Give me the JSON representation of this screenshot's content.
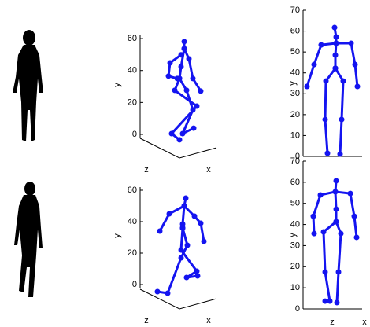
{
  "chart_data": [
    {
      "type": "skeleton",
      "ylabel": "y",
      "zlabel": "z",
      "xlabel": "x",
      "ylim": [
        0,
        62
      ],
      "yticks": [
        0,
        20,
        40,
        60
      ],
      "xlim": [
        0,
        100
      ],
      "color": "#1414f0",
      "series": [
        {
          "x": [
            56,
            56,
            52,
            50
          ],
          "values": [
            58.1,
            53.7,
            42.4,
            35.0
          ]
        },
        {
          "x": [
            52,
            38,
            36,
            47
          ],
          "values": [
            49.8,
            44.8,
            36.5,
            35.0
          ]
        },
        {
          "x": [
            56,
            62,
            67,
            77
          ],
          "values": [
            53.7,
            47.3,
            35.0,
            27.1
          ]
        },
        {
          "x": [
            50,
            44,
            72,
            40,
            50
          ],
          "values": [
            35.0,
            27.6,
            17.7,
            0.5,
            -3.4
          ]
        },
        {
          "x": [
            50,
            59,
            67,
            54,
            68
          ],
          "values": [
            35.0,
            27.6,
            15.3,
            0.5,
            3.9
          ]
        }
      ]
    },
    {
      "type": "skeleton",
      "ylabel": "y",
      "ylim": [
        0,
        70
      ],
      "yticks": [
        0,
        10,
        20,
        30,
        40,
        50,
        60,
        70
      ],
      "xlim": [
        0,
        75
      ],
      "color": "#1414f0",
      "series": [
        {
          "x": [
            40,
            42,
            42,
            41,
            41
          ],
          "values": [
            61.7,
            57.2,
            54.2,
            48.5,
            42.2
          ]
        },
        {
          "x": [
            42,
            23,
            14,
            5
          ],
          "values": [
            54.2,
            53.4,
            44.0,
            33.5
          ]
        },
        {
          "x": [
            42,
            61,
            66,
            69
          ],
          "values": [
            54.2,
            54.2,
            44.0,
            33.5
          ]
        },
        {
          "x": [
            41,
            29,
            28,
            31
          ],
          "values": [
            42.2,
            36.1,
            17.7,
            1.5
          ]
        },
        {
          "x": [
            41,
            51,
            49,
            47
          ],
          "values": [
            42.2,
            36.1,
            17.7,
            1.1
          ]
        }
      ]
    },
    {
      "type": "skeleton",
      "ylabel": "y",
      "zlabel": "z",
      "xlabel": "x",
      "ylim": [
        0,
        62
      ],
      "yticks": [
        0,
        20,
        40,
        60
      ],
      "xlim": [
        0,
        100
      ],
      "color": "#1414f0",
      "series": [
        {
          "x": [
            58,
            56,
            54,
            54
          ],
          "values": [
            55,
            50,
            38.5,
            36
          ]
        },
        {
          "x": [
            56,
            37,
            25
          ],
          "values": [
            50,
            45,
            34
          ]
        },
        {
          "x": [
            56,
            69,
            77,
            81
          ],
          "values": [
            50,
            43.5,
            39,
            27.5
          ]
        },
        {
          "x": [
            54,
            52,
            72,
            59,
            73
          ],
          "values": [
            36,
            22,
            8.5,
            4.5,
            5.5
          ]
        },
        {
          "x": [
            54,
            60,
            52,
            35,
            22
          ],
          "values": [
            36,
            25,
            17,
            -5.5,
            -4.5
          ]
        }
      ]
    },
    {
      "type": "skeleton",
      "ylabel": "y",
      "zlabel": "z",
      "xlabel": "x",
      "ylim": [
        0,
        70
      ],
      "yticks": [
        0,
        10,
        20,
        30,
        40,
        50,
        60,
        70
      ],
      "xlim": [
        0,
        75
      ],
      "color": "#1414f0",
      "series": [
        {
          "x": [
            42,
            41,
            42,
            42
          ],
          "values": [
            60.7,
            55.5,
            47.3,
            41.3
          ]
        },
        {
          "x": [
            41,
            22,
            13,
            14
          ],
          "values": [
            55.5,
            54.0,
            43.9,
            35.7
          ]
        },
        {
          "x": [
            41,
            60,
            65,
            68
          ],
          "values": [
            55.5,
            54.7,
            43.9,
            33.9
          ]
        },
        {
          "x": [
            42,
            26,
            28,
            34,
            28
          ],
          "values": [
            41.3,
            36.5,
            17.5,
            3.7,
            3.7
          ]
        },
        {
          "x": [
            42,
            48,
            45,
            43
          ],
          "values": [
            41.3,
            35.7,
            17.5,
            3.0
          ]
        }
      ]
    }
  ]
}
